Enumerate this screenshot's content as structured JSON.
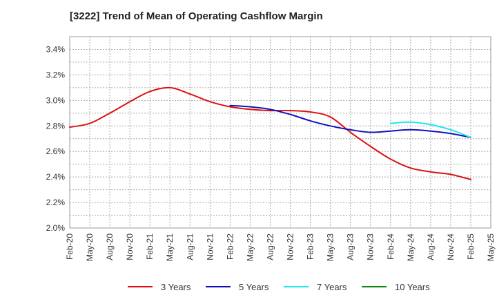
{
  "chart_data": {
    "type": "line",
    "title": "[3222]  Trend of Mean of Operating Cashflow Margin",
    "xlabel": "",
    "ylabel": "",
    "ylim": [
      2.0,
      3.5
    ],
    "grid": true,
    "legend_position": "bottom",
    "x_tick_labels": [
      "Feb-20",
      "May-20",
      "Aug-20",
      "Nov-20",
      "Feb-21",
      "May-21",
      "Aug-21",
      "Nov-21",
      "Feb-22",
      "May-22",
      "Aug-22",
      "Nov-22",
      "Feb-23",
      "May-23",
      "Aug-23",
      "Nov-23",
      "Feb-24",
      "May-24",
      "Aug-24",
      "Nov-24",
      "Feb-25",
      "May-25"
    ],
    "y_tick_labels": [
      "2.0%",
      "2.2%",
      "2.4%",
      "2.6%",
      "2.8%",
      "3.0%",
      "3.2%",
      "3.4%"
    ],
    "y_ticks": [
      2.0,
      2.2,
      2.4,
      2.6,
      2.8,
      3.0,
      3.2,
      3.4
    ],
    "series": [
      {
        "name": "3 Years",
        "color": "#dd1111",
        "x": [
          "Feb-20",
          "May-20",
          "Aug-20",
          "Nov-20",
          "Feb-21",
          "May-21",
          "Aug-21",
          "Nov-21",
          "Feb-22",
          "May-22",
          "Aug-22",
          "Nov-22",
          "Feb-23",
          "May-23",
          "Aug-23",
          "Nov-23",
          "Feb-24",
          "May-24",
          "Aug-24",
          "Nov-24",
          "Feb-25"
        ],
        "values": [
          2.79,
          2.82,
          2.9,
          2.99,
          3.07,
          3.1,
          3.05,
          2.99,
          2.95,
          2.93,
          2.92,
          2.92,
          2.91,
          2.87,
          2.75,
          2.64,
          2.54,
          2.47,
          2.44,
          2.42,
          2.38
        ]
      },
      {
        "name": "5 Years",
        "color": "#1111bb",
        "x": [
          "Feb-22",
          "May-22",
          "Aug-22",
          "Nov-22",
          "Feb-23",
          "May-23",
          "Aug-23",
          "Nov-23",
          "Feb-24",
          "May-24",
          "Aug-24",
          "Nov-24",
          "Feb-25"
        ],
        "values": [
          2.96,
          2.95,
          2.93,
          2.89,
          2.84,
          2.8,
          2.77,
          2.75,
          2.76,
          2.77,
          2.76,
          2.74,
          2.71
        ]
      },
      {
        "name": "7 Years",
        "color": "#22e5f0",
        "x": [
          "Feb-24",
          "May-24",
          "Aug-24",
          "Nov-24",
          "Feb-25"
        ],
        "values": [
          2.82,
          2.83,
          2.81,
          2.77,
          2.71
        ]
      },
      {
        "name": "10 Years",
        "color": "#118811",
        "x": [],
        "values": []
      }
    ]
  }
}
